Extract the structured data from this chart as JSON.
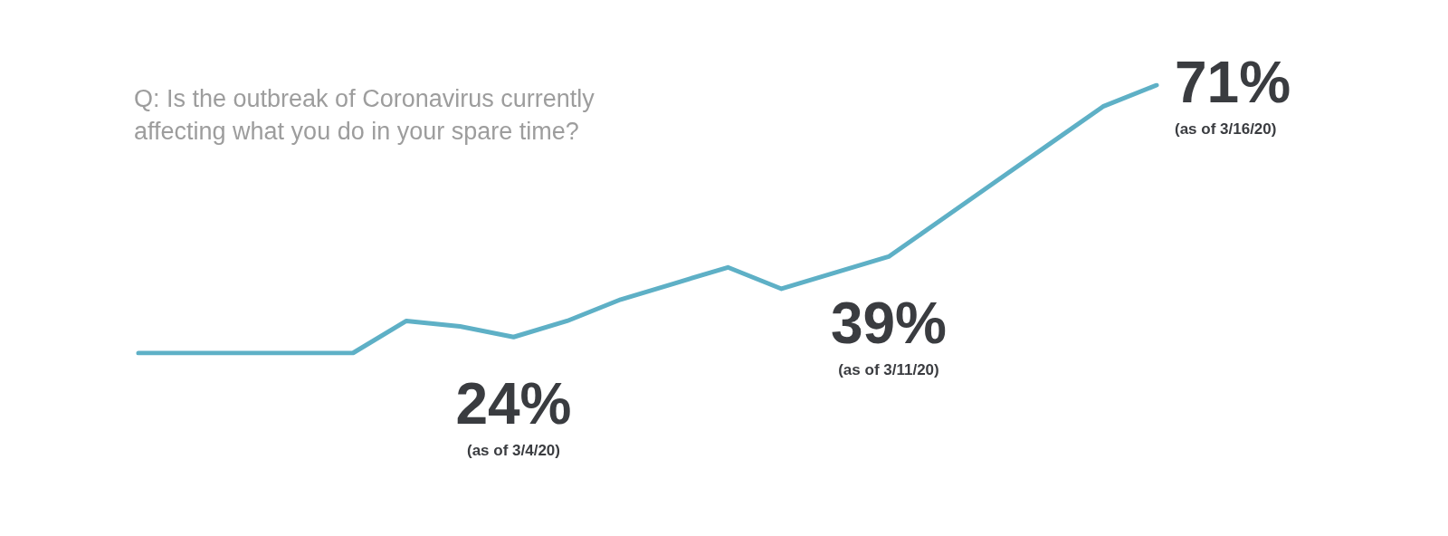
{
  "chart_data": {
    "type": "line",
    "title": "Q: Is the outbreak of Coronavirus currently affecting what you do in your spare time?",
    "categories": [
      null,
      null,
      null,
      null,
      null,
      null,
      null,
      null,
      null,
      null,
      null,
      null,
      null,
      null,
      null,
      null,
      null,
      null,
      null,
      null
    ],
    "series": [
      {
        "color": "#5eb0c6",
        "values": [
          21,
          21,
          21,
          21,
          21,
          27,
          26,
          24,
          27,
          31,
          34,
          37,
          33,
          36,
          39,
          46,
          53,
          60,
          67,
          71
        ],
        "value_labels": [
          null,
          null,
          null,
          null,
          null,
          null,
          null,
          "24%",
          null,
          null,
          null,
          null,
          null,
          null,
          "39%",
          null,
          null,
          null,
          null,
          "71%"
        ]
      }
    ],
    "annotations": [
      "(as of 3/4/20)",
      "(as of 3/11/20)",
      "(as of 3/16/20)"
    ],
    "tick_labels": false,
    "marker": "none",
    "line_style": "solid"
  }
}
